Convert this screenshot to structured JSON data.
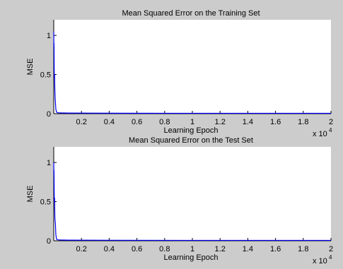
{
  "chart_data": [
    {
      "type": "line",
      "title": "Mean Squared Error on the Training Set",
      "xlabel": "Learning Epoch",
      "ylabel": "MSE",
      "xlim": [
        0,
        20000
      ],
      "ylim": [
        0,
        1.2
      ],
      "x_ticks": [
        "0.2",
        "0.4",
        "0.6",
        "0.8",
        "1",
        "1.2",
        "1.4",
        "1.6",
        "1.8",
        "2"
      ],
      "x_tick_values": [
        2000,
        4000,
        6000,
        8000,
        10000,
        12000,
        14000,
        16000,
        18000,
        20000
      ],
      "y_ticks": [
        "0",
        "0.5",
        "1"
      ],
      "y_tick_values": [
        0,
        0.5,
        1
      ],
      "x_multiplier": "x 10",
      "x_multiplier_exp": "4",
      "grid": false,
      "line_color": "#0000ff",
      "series": [
        {
          "x": [
            0,
            10,
            20,
            40,
            60,
            80,
            100,
            120,
            150,
            200,
            300,
            500,
            1000,
            5000,
            10000,
            15000,
            20000
          ],
          "y": [
            1.05,
            0.85,
            0.9,
            0.45,
            0.5,
            0.3,
            0.2,
            0.15,
            0.06,
            0.02,
            0.012,
            0.01,
            0.008,
            0.006,
            0.005,
            0.005,
            0.005
          ]
        }
      ]
    },
    {
      "type": "line",
      "title": "Mean Squared Error on the Test Set",
      "xlabel": "Learning Epoch",
      "ylabel": "MSE",
      "xlim": [
        0,
        20000
      ],
      "ylim": [
        0,
        1.2
      ],
      "x_ticks": [
        "0.2",
        "0.4",
        "0.6",
        "0.8",
        "1",
        "1.2",
        "1.4",
        "1.6",
        "1.8",
        "2"
      ],
      "x_tick_values": [
        2000,
        4000,
        6000,
        8000,
        10000,
        12000,
        14000,
        16000,
        18000,
        20000
      ],
      "y_ticks": [
        "0",
        "0.5",
        "1"
      ],
      "y_tick_values": [
        0,
        0.5,
        1
      ],
      "x_multiplier": "x 10",
      "x_multiplier_exp": "4",
      "grid": false,
      "line_color": "#0000ff",
      "series": [
        {
          "x": [
            0,
            10,
            20,
            40,
            60,
            80,
            100,
            120,
            150,
            200,
            300,
            500,
            1000,
            5000,
            10000,
            15000,
            20000
          ],
          "y": [
            1.0,
            0.85,
            0.9,
            0.5,
            0.55,
            0.3,
            0.25,
            0.22,
            0.08,
            0.02,
            0.012,
            0.01,
            0.008,
            0.006,
            0.005,
            0.005,
            0.005
          ]
        }
      ]
    }
  ]
}
